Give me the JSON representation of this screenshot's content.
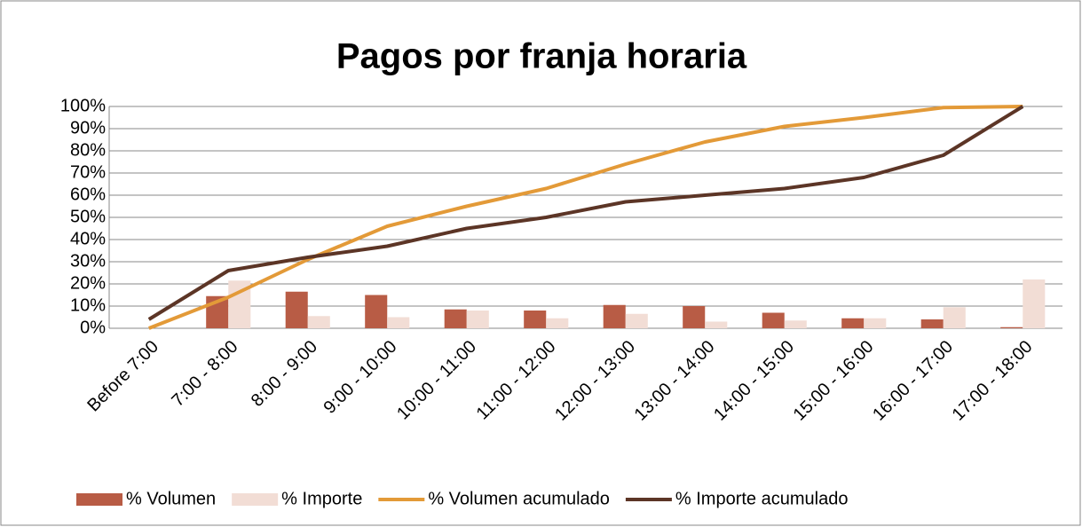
{
  "chart_data": {
    "type": "bar-line",
    "title": "Pagos por franja horaria",
    "categories": [
      "Before 7:00",
      "7:00 - 8:00",
      "8:00 - 9:00",
      "9:00 - 10:00",
      "10:00 - 11:00",
      "11:00 - 12:00",
      "12:00 - 13:00",
      "13:00 - 14:00",
      "14:00 - 15:00",
      "15:00 - 16:00",
      "16:00 - 17:00",
      "17:00 - 18:00"
    ],
    "series": [
      {
        "name": "% Volumen",
        "type": "bar",
        "color": "#b85c45",
        "values": [
          0,
          14.5,
          16.5,
          15,
          8.5,
          8,
          10.5,
          10,
          7,
          4.5,
          4,
          0.5
        ]
      },
      {
        "name": "% Importe",
        "type": "bar",
        "color": "#f2ddd5",
        "values": [
          0,
          21.5,
          5.5,
          5,
          8,
          4.5,
          6.5,
          3,
          3.5,
          4.5,
          9.5,
          22
        ]
      },
      {
        "name": "% Volumen acumulado",
        "type": "line",
        "color": "#e39a38",
        "values": [
          0,
          14,
          31,
          46,
          55,
          63,
          74,
          84,
          91,
          95,
          99.5,
          100
        ]
      },
      {
        "name": "% Importe acumulado",
        "type": "line",
        "color": "#5c3526",
        "values": [
          4,
          26,
          32,
          37,
          45,
          50,
          57,
          60,
          63,
          68,
          78,
          100
        ]
      }
    ],
    "ylim": [
      0,
      100
    ],
    "yticks": [
      {
        "value": 0,
        "label": "0%"
      },
      {
        "value": 10,
        "label": "10%"
      },
      {
        "value": 20,
        "label": "20%"
      },
      {
        "value": 30,
        "label": "30%"
      },
      {
        "value": 40,
        "label": "40%"
      },
      {
        "value": 50,
        "label": "50%"
      },
      {
        "value": 60,
        "label": "60%"
      },
      {
        "value": 70,
        "label": "70%"
      },
      {
        "value": 80,
        "label": "80%"
      },
      {
        "value": 90,
        "label": "90%"
      },
      {
        "value": 100,
        "label": "100%"
      }
    ],
    "grid": true,
    "legend": "bottom"
  }
}
